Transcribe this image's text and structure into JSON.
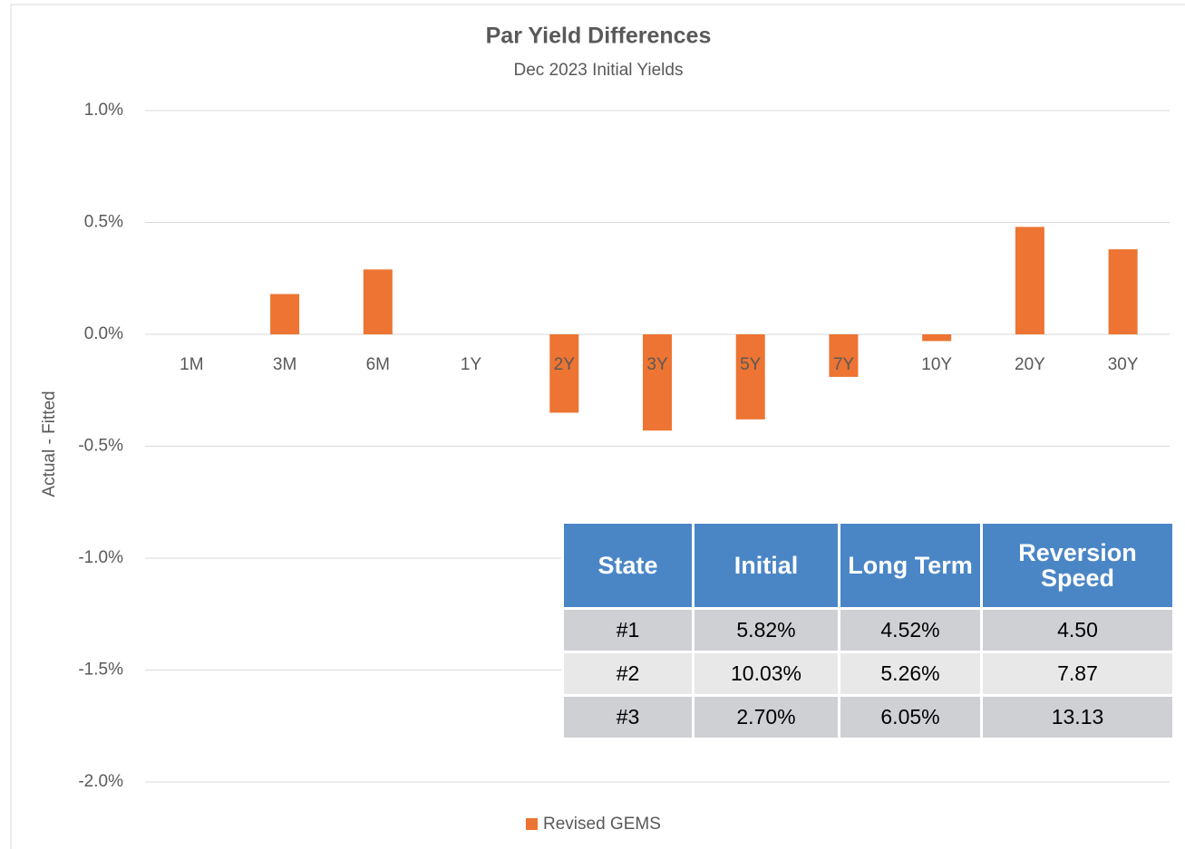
{
  "chart_data": {
    "type": "bar",
    "title": "Par Yield Differences",
    "subtitle": "Dec 2023 Initial Yields",
    "y_label": "Actual - Fitted",
    "categories": [
      "1M",
      "3M",
      "6M",
      "1Y",
      "2Y",
      "3Y",
      "5Y",
      "7Y",
      "10Y",
      "20Y",
      "30Y"
    ],
    "series": [
      {
        "name": "Revised GEMS",
        "color": "#ed7432",
        "values": [
          0,
          0.18,
          0.29,
          0,
          -0.35,
          -0.43,
          -0.38,
          -0.19,
          -0.03,
          0.48,
          0.38
        ]
      }
    ],
    "ylim": [
      -2.0,
      1.0
    ],
    "yticks": [
      {
        "value": -2.0,
        "label": "-2.0%"
      },
      {
        "value": -1.5,
        "label": "-1.5%"
      },
      {
        "value": -1.0,
        "label": "-1.0%"
      },
      {
        "value": -0.5,
        "label": "-0.5%"
      },
      {
        "value": 0.0,
        "label": "0.0%"
      },
      {
        "value": 0.5,
        "label": "0.5%"
      },
      {
        "value": 1.0,
        "label": "1.0%"
      }
    ],
    "grid": true,
    "legend": "bottom"
  },
  "table": {
    "columns": [
      "State",
      "Initial",
      "Long Term",
      "Reversion Speed"
    ],
    "rows": [
      [
        "#1",
        "5.82%",
        "4.52%",
        "4.50"
      ],
      [
        "#2",
        "10.03%",
        "5.26%",
        "7.87"
      ],
      [
        "#3",
        "2.70%",
        "6.05%",
        "13.13"
      ]
    ]
  }
}
